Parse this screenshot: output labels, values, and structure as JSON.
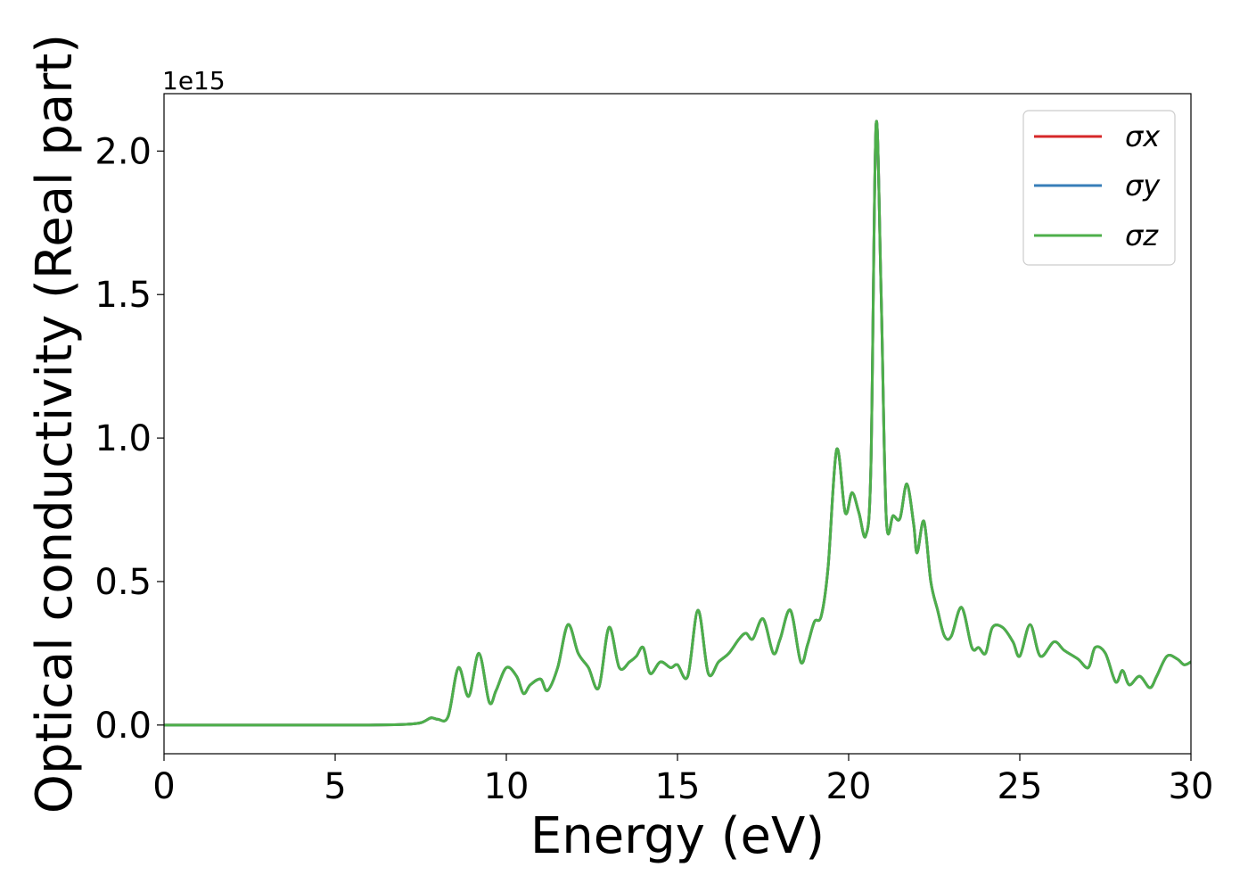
{
  "chart_data": {
    "type": "line",
    "title": "",
    "xlabel": "Energy (eV)",
    "ylabel": "Optical conductivity (Real part)",
    "y_offset_label": "1e15",
    "y_scale": 1000000000000000.0,
    "xlim": [
      0,
      30
    ],
    "ylim": [
      -0.1,
      2.2
    ],
    "x_ticks": [
      0,
      5,
      10,
      15,
      20,
      25,
      30
    ],
    "y_ticks": [
      0.0,
      0.5,
      1.0,
      1.5,
      2.0
    ],
    "x_tick_labels": [
      "0",
      "5",
      "10",
      "15",
      "20",
      "25",
      "30"
    ],
    "y_tick_labels": [
      "0.0",
      "0.5",
      "1.0",
      "1.5",
      "2.0"
    ],
    "grid": false,
    "legend_position": "top-right",
    "legend": {
      "sigma_x": "σx",
      "sigma_y": "σy",
      "sigma_z": "σz"
    },
    "series": [
      {
        "name": "σx",
        "color": "#d62728",
        "draw": false
      },
      {
        "name": "σy",
        "color": "#377eb8",
        "draw": false
      },
      {
        "name": "σz",
        "color": "#4daf4a",
        "draw": true
      }
    ],
    "x": [
      0,
      2,
      4,
      6,
      7,
      7.5,
      7.8,
      8.0,
      8.3,
      8.6,
      8.9,
      9.2,
      9.5,
      9.7,
      10.0,
      10.3,
      10.5,
      10.7,
      11.0,
      11.2,
      11.5,
      11.8,
      12.1,
      12.4,
      12.7,
      13.0,
      13.3,
      13.6,
      13.8,
      14.0,
      14.2,
      14.5,
      14.8,
      15.0,
      15.3,
      15.6,
      15.9,
      16.2,
      16.5,
      16.8,
      17.0,
      17.2,
      17.5,
      17.8,
      18.0,
      18.3,
      18.6,
      18.8,
      19.0,
      19.2,
      19.4,
      19.65,
      19.9,
      20.1,
      20.3,
      20.5,
      20.65,
      20.8,
      20.95,
      21.1,
      21.3,
      21.5,
      21.7,
      21.9,
      22.0,
      22.2,
      22.4,
      22.6,
      22.8,
      23.0,
      23.3,
      23.6,
      23.8,
      24.0,
      24.2,
      24.5,
      24.8,
      25.0,
      25.3,
      25.6,
      26.0,
      26.3,
      26.7,
      27.0,
      27.2,
      27.5,
      27.8,
      28.0,
      28.2,
      28.5,
      28.8,
      29.0,
      29.3,
      29.6,
      29.8,
      30.0
    ],
    "y": [
      0,
      0,
      0,
      0,
      0.002,
      0.008,
      0.025,
      0.02,
      0.03,
      0.2,
      0.1,
      0.25,
      0.08,
      0.12,
      0.2,
      0.17,
      0.11,
      0.14,
      0.16,
      0.12,
      0.2,
      0.35,
      0.25,
      0.2,
      0.13,
      0.34,
      0.2,
      0.22,
      0.24,
      0.27,
      0.18,
      0.22,
      0.2,
      0.21,
      0.17,
      0.4,
      0.18,
      0.22,
      0.25,
      0.3,
      0.32,
      0.3,
      0.37,
      0.25,
      0.3,
      0.4,
      0.22,
      0.28,
      0.36,
      0.38,
      0.55,
      0.96,
      0.74,
      0.81,
      0.74,
      0.66,
      0.9,
      2.09,
      1.5,
      0.72,
      0.73,
      0.72,
      0.84,
      0.7,
      0.6,
      0.71,
      0.5,
      0.4,
      0.31,
      0.31,
      0.41,
      0.27,
      0.27,
      0.25,
      0.34,
      0.34,
      0.29,
      0.24,
      0.35,
      0.24,
      0.29,
      0.26,
      0.23,
      0.2,
      0.27,
      0.25,
      0.15,
      0.19,
      0.14,
      0.17,
      0.13,
      0.17,
      0.24,
      0.23,
      0.21,
      0.22
    ]
  }
}
